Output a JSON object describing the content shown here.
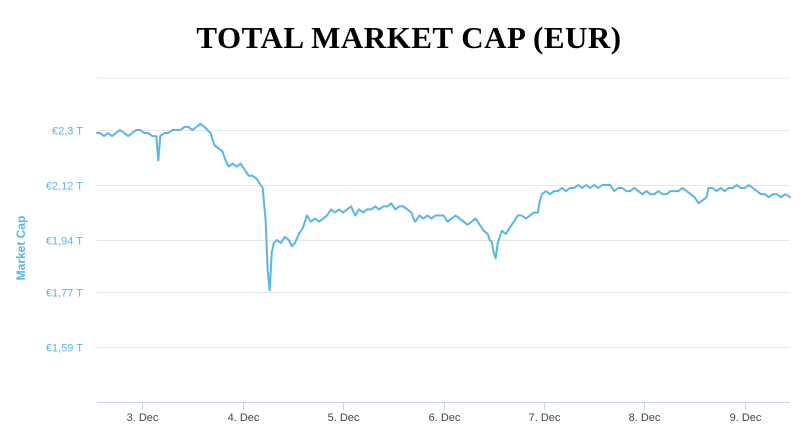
{
  "colors": {
    "line": "#59b7e0",
    "grid": "#e6e6e6",
    "axis_text": "#59b7e0",
    "x_text": "#444444"
  },
  "chart_data": {
    "type": "line",
    "title": "TOTAL MARKET CAP (EUR)",
    "ylabel": "Market Cap",
    "xlabel": "",
    "grid": true,
    "y_ticks": [
      {
        "value": 2.3,
        "label": "€2,3 T"
      },
      {
        "value": 2.12,
        "label": "€2,12 T"
      },
      {
        "value": 1.94,
        "label": "€1,94 T"
      },
      {
        "value": 1.77,
        "label": "€1,77 T"
      },
      {
        "value": 1.59,
        "label": "€1,59 T"
      }
    ],
    "x_ticks": [
      {
        "value": 3,
        "label": "3. Dec"
      },
      {
        "value": 4,
        "label": "4. Dec"
      },
      {
        "value": 5,
        "label": "5. Dec"
      },
      {
        "value": 6,
        "label": "6. Dec"
      },
      {
        "value": 7,
        "label": "7. Dec"
      },
      {
        "value": 8,
        "label": "8. Dec"
      },
      {
        "value": 9,
        "label": "9. Dec"
      }
    ],
    "xlim": [
      2.55,
      9.45
    ],
    "ylim": [
      1.41,
      2.47
    ],
    "series": [
      {
        "points": [
          [
            2.55,
            2.29
          ],
          [
            2.58,
            2.29
          ],
          [
            2.62,
            2.28
          ],
          [
            2.66,
            2.29
          ],
          [
            2.7,
            2.28
          ],
          [
            2.74,
            2.29
          ],
          [
            2.78,
            2.3
          ],
          [
            2.82,
            2.29
          ],
          [
            2.86,
            2.28
          ],
          [
            2.9,
            2.29
          ],
          [
            2.94,
            2.3
          ],
          [
            2.98,
            2.3
          ],
          [
            3.02,
            2.29
          ],
          [
            3.06,
            2.29
          ],
          [
            3.1,
            2.28
          ],
          [
            3.14,
            2.28
          ],
          [
            3.16,
            2.2
          ],
          [
            3.18,
            2.28
          ],
          [
            3.22,
            2.29
          ],
          [
            3.26,
            2.29
          ],
          [
            3.3,
            2.3
          ],
          [
            3.34,
            2.3
          ],
          [
            3.38,
            2.3
          ],
          [
            3.42,
            2.31
          ],
          [
            3.46,
            2.31
          ],
          [
            3.5,
            2.3
          ],
          [
            3.54,
            2.31
          ],
          [
            3.58,
            2.32
          ],
          [
            3.62,
            2.31
          ],
          [
            3.65,
            2.3
          ],
          [
            3.68,
            2.29
          ],
          [
            3.72,
            2.25
          ],
          [
            3.76,
            2.24
          ],
          [
            3.8,
            2.23
          ],
          [
            3.83,
            2.2
          ],
          [
            3.86,
            2.18
          ],
          [
            3.9,
            2.19
          ],
          [
            3.94,
            2.18
          ],
          [
            3.98,
            2.19
          ],
          [
            4.02,
            2.17
          ],
          [
            4.06,
            2.15
          ],
          [
            4.1,
            2.15
          ],
          [
            4.14,
            2.14
          ],
          [
            4.18,
            2.12
          ],
          [
            4.2,
            2.11
          ],
          [
            4.23,
            2.0
          ],
          [
            4.25,
            1.84
          ],
          [
            4.27,
            1.775
          ],
          [
            4.29,
            1.9
          ],
          [
            4.31,
            1.93
          ],
          [
            4.34,
            1.94
          ],
          [
            4.38,
            1.93
          ],
          [
            4.42,
            1.95
          ],
          [
            4.46,
            1.94
          ],
          [
            4.49,
            1.92
          ],
          [
            4.52,
            1.93
          ],
          [
            4.56,
            1.96
          ],
          [
            4.6,
            1.98
          ],
          [
            4.64,
            2.02
          ],
          [
            4.68,
            2.0
          ],
          [
            4.72,
            2.01
          ],
          [
            4.76,
            2.0
          ],
          [
            4.8,
            2.01
          ],
          [
            4.84,
            2.02
          ],
          [
            4.88,
            2.04
          ],
          [
            4.92,
            2.03
          ],
          [
            4.96,
            2.04
          ],
          [
            5.0,
            2.03
          ],
          [
            5.04,
            2.04
          ],
          [
            5.08,
            2.05
          ],
          [
            5.12,
            2.02
          ],
          [
            5.16,
            2.04
          ],
          [
            5.2,
            2.03
          ],
          [
            5.24,
            2.04
          ],
          [
            5.28,
            2.04
          ],
          [
            5.32,
            2.05
          ],
          [
            5.36,
            2.04
          ],
          [
            5.4,
            2.05
          ],
          [
            5.44,
            2.05
          ],
          [
            5.48,
            2.06
          ],
          [
            5.52,
            2.04
          ],
          [
            5.56,
            2.05
          ],
          [
            5.6,
            2.05
          ],
          [
            5.64,
            2.04
          ],
          [
            5.68,
            2.03
          ],
          [
            5.7,
            2.01
          ],
          [
            5.72,
            2.0
          ],
          [
            5.76,
            2.02
          ],
          [
            5.8,
            2.01
          ],
          [
            5.84,
            2.02
          ],
          [
            5.88,
            2.01
          ],
          [
            5.92,
            2.02
          ],
          [
            5.96,
            2.02
          ],
          [
            6.0,
            2.02
          ],
          [
            6.04,
            2.0
          ],
          [
            6.08,
            2.01
          ],
          [
            6.12,
            2.02
          ],
          [
            6.16,
            2.01
          ],
          [
            6.2,
            2.0
          ],
          [
            6.24,
            1.99
          ],
          [
            6.28,
            2.0
          ],
          [
            6.32,
            2.01
          ],
          [
            6.36,
            1.99
          ],
          [
            6.4,
            1.97
          ],
          [
            6.44,
            1.96
          ],
          [
            6.46,
            1.94
          ],
          [
            6.48,
            1.935
          ],
          [
            6.5,
            1.9
          ],
          [
            6.52,
            1.88
          ],
          [
            6.54,
            1.93
          ],
          [
            6.58,
            1.97
          ],
          [
            6.62,
            1.96
          ],
          [
            6.66,
            1.98
          ],
          [
            6.7,
            2.0
          ],
          [
            6.74,
            2.02
          ],
          [
            6.78,
            2.02
          ],
          [
            6.82,
            2.01
          ],
          [
            6.86,
            2.02
          ],
          [
            6.9,
            2.03
          ],
          [
            6.94,
            2.03
          ],
          [
            6.96,
            2.07
          ],
          [
            6.98,
            2.09
          ],
          [
            7.02,
            2.1
          ],
          [
            7.06,
            2.09
          ],
          [
            7.1,
            2.1
          ],
          [
            7.14,
            2.1
          ],
          [
            7.18,
            2.11
          ],
          [
            7.22,
            2.1
          ],
          [
            7.26,
            2.11
          ],
          [
            7.3,
            2.11
          ],
          [
            7.34,
            2.12
          ],
          [
            7.38,
            2.11
          ],
          [
            7.42,
            2.12
          ],
          [
            7.46,
            2.11
          ],
          [
            7.5,
            2.12
          ],
          [
            7.54,
            2.11
          ],
          [
            7.58,
            2.12
          ],
          [
            7.62,
            2.12
          ],
          [
            7.66,
            2.12
          ],
          [
            7.7,
            2.1
          ],
          [
            7.74,
            2.11
          ],
          [
            7.78,
            2.11
          ],
          [
            7.82,
            2.1
          ],
          [
            7.86,
            2.1
          ],
          [
            7.9,
            2.11
          ],
          [
            7.94,
            2.1
          ],
          [
            7.98,
            2.09
          ],
          [
            8.02,
            2.1
          ],
          [
            8.06,
            2.09
          ],
          [
            8.1,
            2.09
          ],
          [
            8.14,
            2.1
          ],
          [
            8.18,
            2.09
          ],
          [
            8.22,
            2.09
          ],
          [
            8.26,
            2.1
          ],
          [
            8.3,
            2.1
          ],
          [
            8.34,
            2.1
          ],
          [
            8.38,
            2.11
          ],
          [
            8.42,
            2.1
          ],
          [
            8.46,
            2.09
          ],
          [
            8.5,
            2.08
          ],
          [
            8.54,
            2.06
          ],
          [
            8.58,
            2.07
          ],
          [
            8.62,
            2.08
          ],
          [
            8.64,
            2.11
          ],
          [
            8.68,
            2.11
          ],
          [
            8.72,
            2.1
          ],
          [
            8.76,
            2.11
          ],
          [
            8.8,
            2.1
          ],
          [
            8.84,
            2.11
          ],
          [
            8.88,
            2.11
          ],
          [
            8.92,
            2.12
          ],
          [
            8.96,
            2.11
          ],
          [
            9.0,
            2.11
          ],
          [
            9.04,
            2.12
          ],
          [
            9.08,
            2.11
          ],
          [
            9.12,
            2.1
          ],
          [
            9.16,
            2.09
          ],
          [
            9.2,
            2.09
          ],
          [
            9.24,
            2.08
          ],
          [
            9.28,
            2.09
          ],
          [
            9.32,
            2.09
          ],
          [
            9.36,
            2.08
          ],
          [
            9.4,
            2.09
          ],
          [
            9.43,
            2.085
          ],
          [
            9.45,
            2.08
          ]
        ]
      }
    ]
  }
}
